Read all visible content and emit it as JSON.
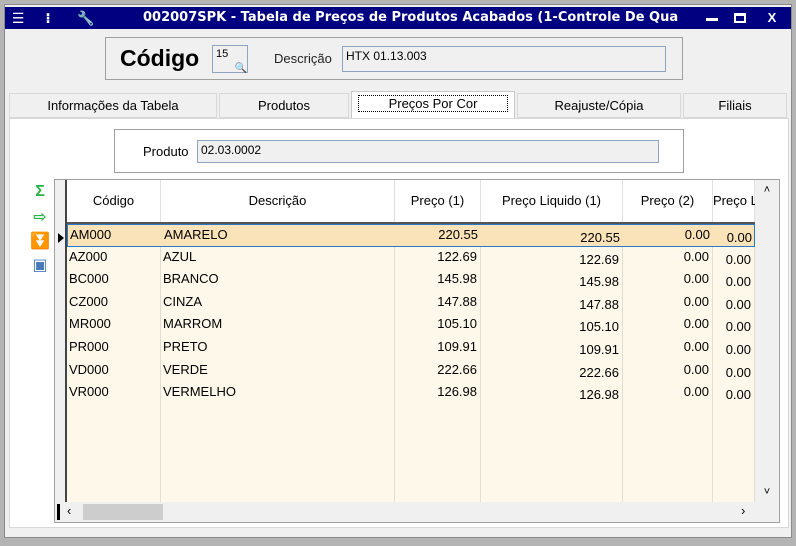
{
  "window": {
    "title": "002007SPK - Tabela de Preços de Produtos Acabados (1-Controle De Qua",
    "icons": [
      "menu-icon",
      "traffic-light-icon",
      "wrench-icon"
    ],
    "controls": [
      "minimize",
      "maximize",
      "close"
    ],
    "close_label": "X"
  },
  "header": {
    "codigo_label": "Código",
    "codigo_value": "15",
    "descricao_label": "Descrição",
    "descricao_value": "HTX 01.13.003"
  },
  "tabs": [
    {
      "label": "Informações da Tabela"
    },
    {
      "label": "Produtos"
    },
    {
      "label": "Preços Por Cor",
      "active": true
    },
    {
      "label": "Reajuste/Cópia"
    },
    {
      "label": "Filiais"
    }
  ],
  "produto": {
    "label": "Produto",
    "value": "02.03.0002"
  },
  "side_tools": [
    "sum-icon",
    "export-icon",
    "download-icon",
    "image-icon"
  ],
  "grid": {
    "columns": [
      "Código",
      "Descrição",
      "Preço (1)",
      "Preço Liquido (1)",
      "Preço (2)",
      "Preço L"
    ],
    "rows": [
      [
        "AM000",
        "AMARELO",
        "220.55",
        "220.55",
        "0.00",
        "0.00"
      ],
      [
        "AZ000",
        "AZUL",
        "122.69",
        "122.69",
        "0.00",
        "0.00"
      ],
      [
        "BC000",
        "BRANCO",
        "145.98",
        "145.98",
        "0.00",
        "0.00"
      ],
      [
        "CZ000",
        "CINZA",
        "147.88",
        "147.88",
        "0.00",
        "0.00"
      ],
      [
        "MR000",
        "MARROM",
        "105.10",
        "105.10",
        "0.00",
        "0.00"
      ],
      [
        "PR000",
        "PRETO",
        "109.91",
        "109.91",
        "0.00",
        "0.00"
      ],
      [
        "VD000",
        "VERDE",
        "222.66",
        "222.66",
        "0.00",
        "0.00"
      ],
      [
        "VR000",
        "VERMELHO",
        "126.98",
        "126.98",
        "0.00",
        "0.00"
      ]
    ],
    "selected_row": 0
  },
  "colors": {
    "titlebar": "#000080",
    "row_bg": "#fdf8e9",
    "selected_row": "#fbe3b9",
    "selection_border": "#2a78c8"
  }
}
